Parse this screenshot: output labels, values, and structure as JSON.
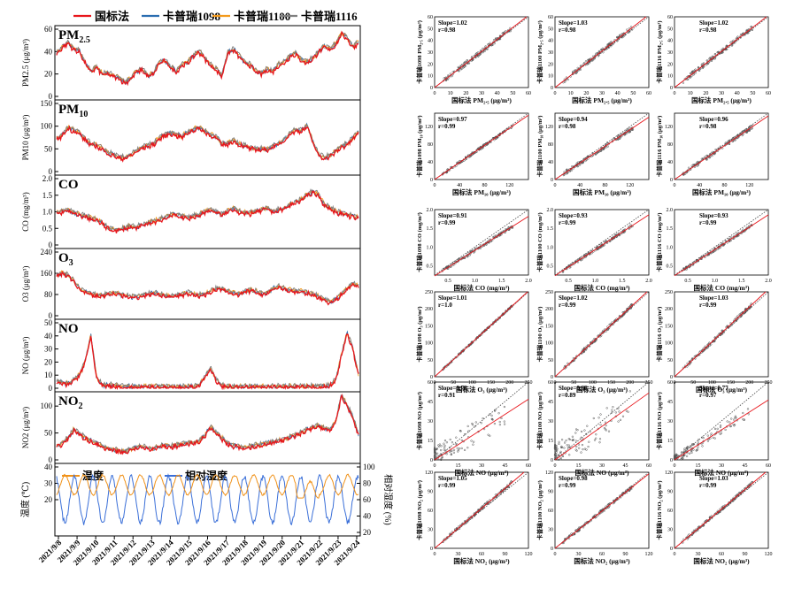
{
  "chart_data": {
    "type": "line",
    "legend": {
      "position": "top",
      "entries": [
        {
          "name": "国标法",
          "color": "#e8151b"
        },
        {
          "name": "卡普瑞1098",
          "color": "#2a6db0"
        },
        {
          "name": "卡普瑞1100",
          "color": "#f39a1c"
        },
        {
          "name": "卡普瑞1116",
          "color": "#7f7f7f"
        }
      ]
    },
    "x_ticks": [
      "2021/9/8",
      "2021/9/9",
      "2021/9/10",
      "2021/9/11",
      "2021/9/12",
      "2021/9/13",
      "2021/9/14",
      "2021/9/15",
      "2021/9/16",
      "2021/9/17",
      "2021/9/18",
      "2021/9/19",
      "2021/9/20",
      "2021/9/21",
      "2021/9/22",
      "2021/9/23",
      "2021/9/24"
    ],
    "timeseries": [
      {
        "id": "pm25",
        "title": "PM",
        "title_sub": "2.5",
        "ylabel": "PM2.5 (μg/m³)",
        "ylim": [
          0,
          60
        ],
        "yticks": [
          "0",
          "20",
          "40",
          "60"
        ],
        "base": [
          38,
          44,
          48,
          42,
          40,
          30,
          22,
          26,
          20,
          20,
          18,
          16,
          12,
          16,
          22,
          24,
          18,
          20,
          30,
          32,
          26,
          22,
          28,
          30,
          36,
          40,
          34,
          28,
          24,
          18,
          38,
          42,
          36,
          30,
          28,
          22,
          20,
          24,
          22,
          28,
          30,
          36,
          38,
          32,
          30,
          34,
          40,
          44,
          42,
          46,
          56,
          52,
          44,
          48
        ]
      },
      {
        "id": "pm10",
        "title": "PM",
        "title_sub": "10",
        "ylabel": "PM10 (μg/m³)",
        "ylim": [
          0,
          150
        ],
        "yticks": [
          "0",
          "50",
          "100",
          "150"
        ],
        "base": [
          70,
          80,
          96,
          90,
          84,
          70,
          60,
          56,
          50,
          40,
          36,
          30,
          30,
          36,
          44,
          52,
          56,
          60,
          72,
          80,
          84,
          80,
          76,
          86,
          92,
          96,
          88,
          80,
          76,
          60,
          60,
          68,
          60,
          56,
          52,
          48,
          50,
          48,
          56,
          60,
          70,
          84,
          90,
          90,
          100,
          64,
          36,
          30,
          34,
          44,
          54,
          60,
          72,
          86
        ]
      },
      {
        "id": "co",
        "title": "CO",
        "title_sub": "",
        "ylabel": "CO (mg/m³)",
        "ylim": [
          0,
          2
        ],
        "yticks": [
          "0",
          "0.5",
          "1.0",
          "1.5",
          "2.0"
        ],
        "base": [
          0.95,
          1.0,
          1.05,
          0.95,
          0.9,
          0.85,
          0.8,
          0.75,
          0.65,
          0.5,
          0.45,
          0.45,
          0.5,
          0.55,
          0.5,
          0.6,
          0.65,
          0.7,
          0.75,
          0.8,
          0.9,
          0.9,
          0.85,
          0.8,
          0.85,
          0.9,
          1.0,
          1.05,
          1.0,
          0.9,
          1.0,
          1.1,
          1.0,
          0.95,
          0.95,
          1.0,
          1.05,
          1.1,
          1.0,
          1.05,
          1.1,
          1.2,
          1.3,
          1.35,
          1.5,
          1.6,
          1.5,
          1.2,
          1.1,
          1.0,
          0.95,
          0.9,
          0.85,
          0.8
        ]
      },
      {
        "id": "o3",
        "title": "O",
        "title_sub": "3",
        "ylabel": "O3 (μg/m³)",
        "ylim": [
          0,
          240
        ],
        "yticks": [
          "0",
          "80",
          "160",
          "240"
        ],
        "base": [
          150,
          160,
          150,
          130,
          100,
          90,
          80,
          75,
          75,
          80,
          85,
          80,
          75,
          70,
          70,
          75,
          80,
          85,
          80,
          75,
          70,
          75,
          80,
          85,
          80,
          75,
          80,
          90,
          100,
          100,
          90,
          85,
          80,
          90,
          95,
          90,
          80,
          85,
          100,
          110,
          100,
          95,
          90,
          90,
          85,
          80,
          70,
          60,
          50,
          60,
          80,
          100,
          120,
          110
        ]
      },
      {
        "id": "no",
        "title": "NO",
        "title_sub": "",
        "ylabel": "NO (μg/m³)",
        "ylim": [
          0,
          50
        ],
        "yticks": [
          "0",
          "10",
          "20",
          "30",
          "40",
          "50"
        ],
        "base": [
          5,
          4,
          3,
          6,
          10,
          20,
          40,
          8,
          2,
          2,
          2,
          1,
          1,
          1,
          1,
          1,
          1,
          1,
          1,
          1,
          1,
          1,
          1,
          1,
          1,
          2,
          8,
          15,
          6,
          2,
          1,
          1,
          1,
          1,
          1,
          1,
          1,
          1,
          1,
          1,
          1,
          1,
          1,
          1,
          1,
          1,
          1,
          1,
          2,
          6,
          25,
          42,
          30,
          10
        ]
      },
      {
        "id": "no2",
        "title": "NO",
        "title_sub": "2",
        "ylabel": "NO2 (μg/m³)",
        "ylim": [
          0,
          120
        ],
        "yticks": [
          "0",
          "50",
          "100"
        ],
        "base": [
          24,
          30,
          40,
          56,
          48,
          40,
          35,
          30,
          24,
          20,
          18,
          16,
          15,
          18,
          22,
          24,
          22,
          20,
          24,
          26,
          24,
          26,
          28,
          30,
          32,
          34,
          45,
          60,
          50,
          40,
          30,
          26,
          24,
          22,
          24,
          26,
          28,
          30,
          32,
          35,
          38,
          42,
          46,
          50,
          55,
          60,
          62,
          58,
          55,
          70,
          120,
          100,
          80,
          45
        ]
      }
    ],
    "met": {
      "legend": [
        {
          "name": "温度",
          "color": "#f0921a"
        },
        {
          "name": "相对湿度",
          "color": "#3a6fd8"
        }
      ],
      "ylabel_left": "温度 (℃)",
      "ylim_left": [
        0,
        40
      ],
      "yticks_left": [
        "20",
        "30",
        "40"
      ],
      "ylabel_right": "相对湿度 (%)",
      "ylim_right": [
        20,
        100
      ],
      "yticks_right": [
        "20",
        "40",
        "60",
        "80",
        "100"
      ]
    },
    "scatter": {
      "x_axes": [
        "国标法 PM₂.₅ (μg/m³)",
        "国标法 PM₁₀ (μg/m³)",
        "国标法 CO (mg/m³)",
        "国标法 O₃ (μg/m³)",
        "国标法 NO (μg/m³)",
        "国标法 NO₂ (μg/m³)"
      ],
      "rows": [
        {
          "pollutant": "PM2.5",
          "ylabels": [
            "卡普瑞1098 PM₂.₅ (μg/m³)",
            "卡普瑞1100 PM₂.₅ (μg/m³)",
            "卡普瑞1116 PM₂.₅ (μg/m³)"
          ],
          "max": 60,
          "ticks": [
            "0",
            "10",
            "20",
            "30",
            "40",
            "50",
            "60"
          ],
          "yticks": [
            "0",
            "10",
            "20",
            "30",
            "40",
            "50",
            "60"
          ],
          "slope": [
            1.02,
            1.03,
            1.02
          ],
          "r": [
            0.98,
            0.98,
            0.98
          ],
          "stat_text": [
            "Slope=1.02",
            "Slope=1.03",
            "Slope=1.02"
          ],
          "r_text": [
            "r=0.98",
            "r=0.98",
            "r=0.98"
          ]
        },
        {
          "pollutant": "PM10",
          "ylabels": [
            "卡普瑞1098 PM₁₀ (μg/m³)",
            "卡普瑞1100 PM₁₀ (μg/m³)",
            "卡普瑞1116 PM₁₀ (μg/m³)"
          ],
          "max": 150,
          "ticks": [
            "0",
            "40",
            "80",
            "120"
          ],
          "yticks": [
            "0",
            "40",
            "80",
            "120"
          ],
          "slope": [
            0.97,
            0.94,
            0.96
          ],
          "r": [
            0.99,
            0.98,
            0.98
          ],
          "stat_text": [
            "Slope=0.97",
            "Slope=0.94",
            "Slope=0.96"
          ],
          "r_text": [
            "r=0.99",
            "r=0.98",
            "r=0.98"
          ]
        },
        {
          "pollutant": "CO",
          "ylabels": [
            "卡普瑞1098 CO (mg/m³)",
            "卡普瑞1100 CO (mg/m³)",
            "卡普瑞1116 CO (mg/m³)"
          ],
          "max": 2,
          "ticks": [
            "0.5",
            "1.0",
            "1.5",
            "2.0"
          ],
          "yticks": [
            "0.5",
            "1.0",
            "1.5",
            "2.0"
          ],
          "slope": [
            0.91,
            0.93,
            0.93
          ],
          "r": [
            0.99,
            0.99,
            0.99
          ],
          "stat_text": [
            "Slope=0.91",
            "Slope=0.93",
            "Slope=0.93"
          ],
          "r_text": [
            "r=0.99",
            "r=0.99",
            "r=0.99"
          ]
        },
        {
          "pollutant": "O3",
          "ylabels": [
            "卡普瑞1098 O₃ (μg/m³)",
            "卡普瑞1100 O₃ (μg/m³)",
            "卡普瑞1116 O₃ (μg/m³)"
          ],
          "max": 250,
          "ticks": [
            "0",
            "50",
            "100",
            "150",
            "200",
            "250"
          ],
          "yticks": [
            "0",
            "50",
            "100",
            "150",
            "200",
            "250"
          ],
          "slope": [
            1.01,
            1.02,
            1.03
          ],
          "r": [
            1.0,
            0.99,
            0.99
          ],
          "stat_text": [
            "Slope=1.01",
            "Slope=1.02",
            "Slope=1.03"
          ],
          "r_text": [
            "r=1.0",
            "r=0.99",
            "r=0.99"
          ]
        },
        {
          "pollutant": "NO",
          "ylabels": [
            "卡普瑞1098 NO (μg/m³)",
            "卡普瑞1100 NO (μg/m³)",
            "卡普瑞1116 NO (μg/m³)"
          ],
          "max": 60,
          "ticks": [
            "0",
            "15",
            "30",
            "45",
            "60"
          ],
          "yticks": [
            "0",
            "15",
            "30",
            "45",
            "60"
          ],
          "slope": [
            0.78,
            0.86,
            0.77
          ],
          "r": [
            0.91,
            0.89,
            0.97
          ],
          "stat_text": [
            "Slope=0.78",
            "Slope=0.86",
            "Slope=0.77"
          ],
          "r_text": [
            "r=0.91",
            "r=0.89",
            "r=0.97"
          ]
        },
        {
          "pollutant": "NO2",
          "ylabels": [
            "卡普瑞1098 NO₂ (μg/m³)",
            "卡普瑞1100 NO₂ (μg/m³)",
            "卡普瑞1116 NO₂ (μg/m³)"
          ],
          "max": 120,
          "ticks": [
            "0",
            "30",
            "60",
            "90",
            "120"
          ],
          "yticks": [
            "0",
            "30",
            "60",
            "90",
            "120"
          ],
          "slope": [
            1.05,
            0.98,
            1.03
          ],
          "r": [
            0.99,
            0.99,
            0.99
          ],
          "stat_text": [
            "Slope=1.05",
            "Slope=0.98",
            "Slope=1.03"
          ],
          "r_text": [
            "r=0.99",
            "r=0.99",
            "r=0.99"
          ]
        }
      ]
    }
  }
}
